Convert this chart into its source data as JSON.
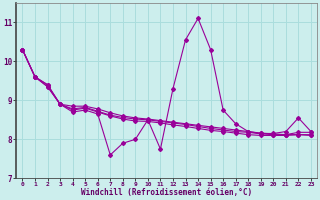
{
  "xlabel": "Windchill (Refroidissement éolien,°C)",
  "background_color": "#cceeed",
  "grid_color": "#aadddd",
  "line_color": "#990099",
  "xlim": [
    -0.5,
    23.5
  ],
  "ylim": [
    7,
    11.5
  ],
  "yticks": [
    7,
    8,
    9,
    10,
    11
  ],
  "xticks": [
    0,
    1,
    2,
    3,
    4,
    5,
    6,
    7,
    8,
    9,
    10,
    11,
    12,
    13,
    14,
    15,
    16,
    17,
    18,
    19,
    20,
    21,
    22,
    23
  ],
  "series": [
    [
      10.3,
      9.6,
      9.4,
      8.9,
      8.7,
      8.75,
      8.65,
      7.6,
      7.9,
      8.0,
      8.5,
      7.75,
      9.3,
      10.55,
      11.1,
      10.3,
      8.75,
      8.4,
      8.2,
      8.15,
      8.15,
      8.2,
      8.55,
      8.2
    ],
    [
      10.3,
      9.6,
      9.4,
      8.9,
      8.85,
      8.85,
      8.78,
      8.68,
      8.6,
      8.55,
      8.52,
      8.48,
      8.44,
      8.4,
      8.36,
      8.32,
      8.28,
      8.24,
      8.2,
      8.16,
      8.14,
      8.12,
      8.12,
      8.1
    ],
    [
      10.3,
      9.6,
      9.35,
      8.9,
      8.78,
      8.82,
      8.72,
      8.62,
      8.56,
      8.52,
      8.5,
      8.46,
      8.42,
      8.38,
      8.33,
      8.28,
      8.24,
      8.2,
      8.18,
      8.14,
      8.12,
      8.12,
      8.18,
      8.18
    ],
    [
      10.3,
      9.6,
      9.35,
      8.9,
      8.75,
      8.8,
      8.7,
      8.6,
      8.52,
      8.47,
      8.46,
      8.42,
      8.37,
      8.33,
      8.28,
      8.23,
      8.2,
      8.16,
      8.12,
      8.1,
      8.1,
      8.1,
      8.12,
      8.12
    ]
  ]
}
